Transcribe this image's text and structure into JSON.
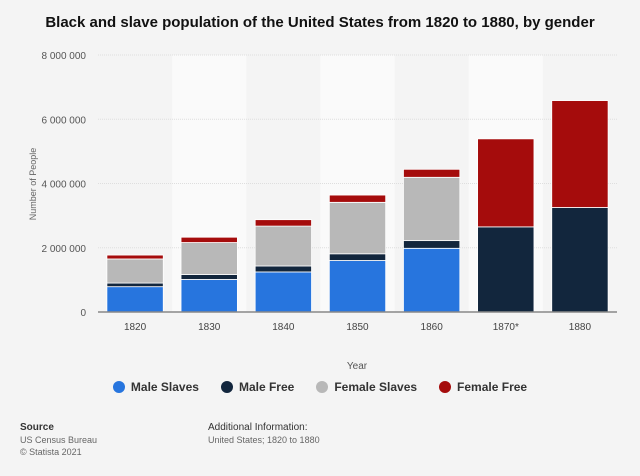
{
  "chart_data": {
    "type": "bar",
    "stacked": true,
    "title": "Black and slave population of the United States from 1820 to 1880, by gender",
    "xlabel": "Year",
    "ylabel": "Number of People",
    "ylim": [
      0,
      8000000
    ],
    "yticks": [
      0,
      2000000,
      4000000,
      6000000,
      8000000
    ],
    "ytick_labels": [
      "0",
      "2 000 000",
      "4 000 000",
      "6 000 000",
      "8 000 000"
    ],
    "grid": true,
    "legend_position": "bottom",
    "categories": [
      "1820",
      "1830",
      "1840",
      "1850",
      "1860",
      "1870*",
      "1880"
    ],
    "series": [
      {
        "name": "Male Slaves",
        "color": "#2775de",
        "values": [
          788000,
          1013000,
          1247000,
          1603000,
          1983000,
          0,
          0
        ]
      },
      {
        "name": "Male Free",
        "color": "#12263d",
        "values": [
          113000,
          153000,
          186000,
          209000,
          239000,
          2650000,
          3253000
        ]
      },
      {
        "name": "Female Slaves",
        "color": "#b8b8b8",
        "values": [
          750000,
          996000,
          1241000,
          1602000,
          1971000,
          0,
          0
        ]
      },
      {
        "name": "Female Free",
        "color": "#a50c0c",
        "values": [
          121000,
          166000,
          200000,
          226000,
          249000,
          2740000,
          3328000
        ]
      }
    ]
  },
  "footer": {
    "source_label": "Source",
    "source": "US Census Bureau",
    "copyright": "© Statista 2021",
    "info_label": "Additional Information:",
    "info": "United States; 1820 to 1880"
  }
}
